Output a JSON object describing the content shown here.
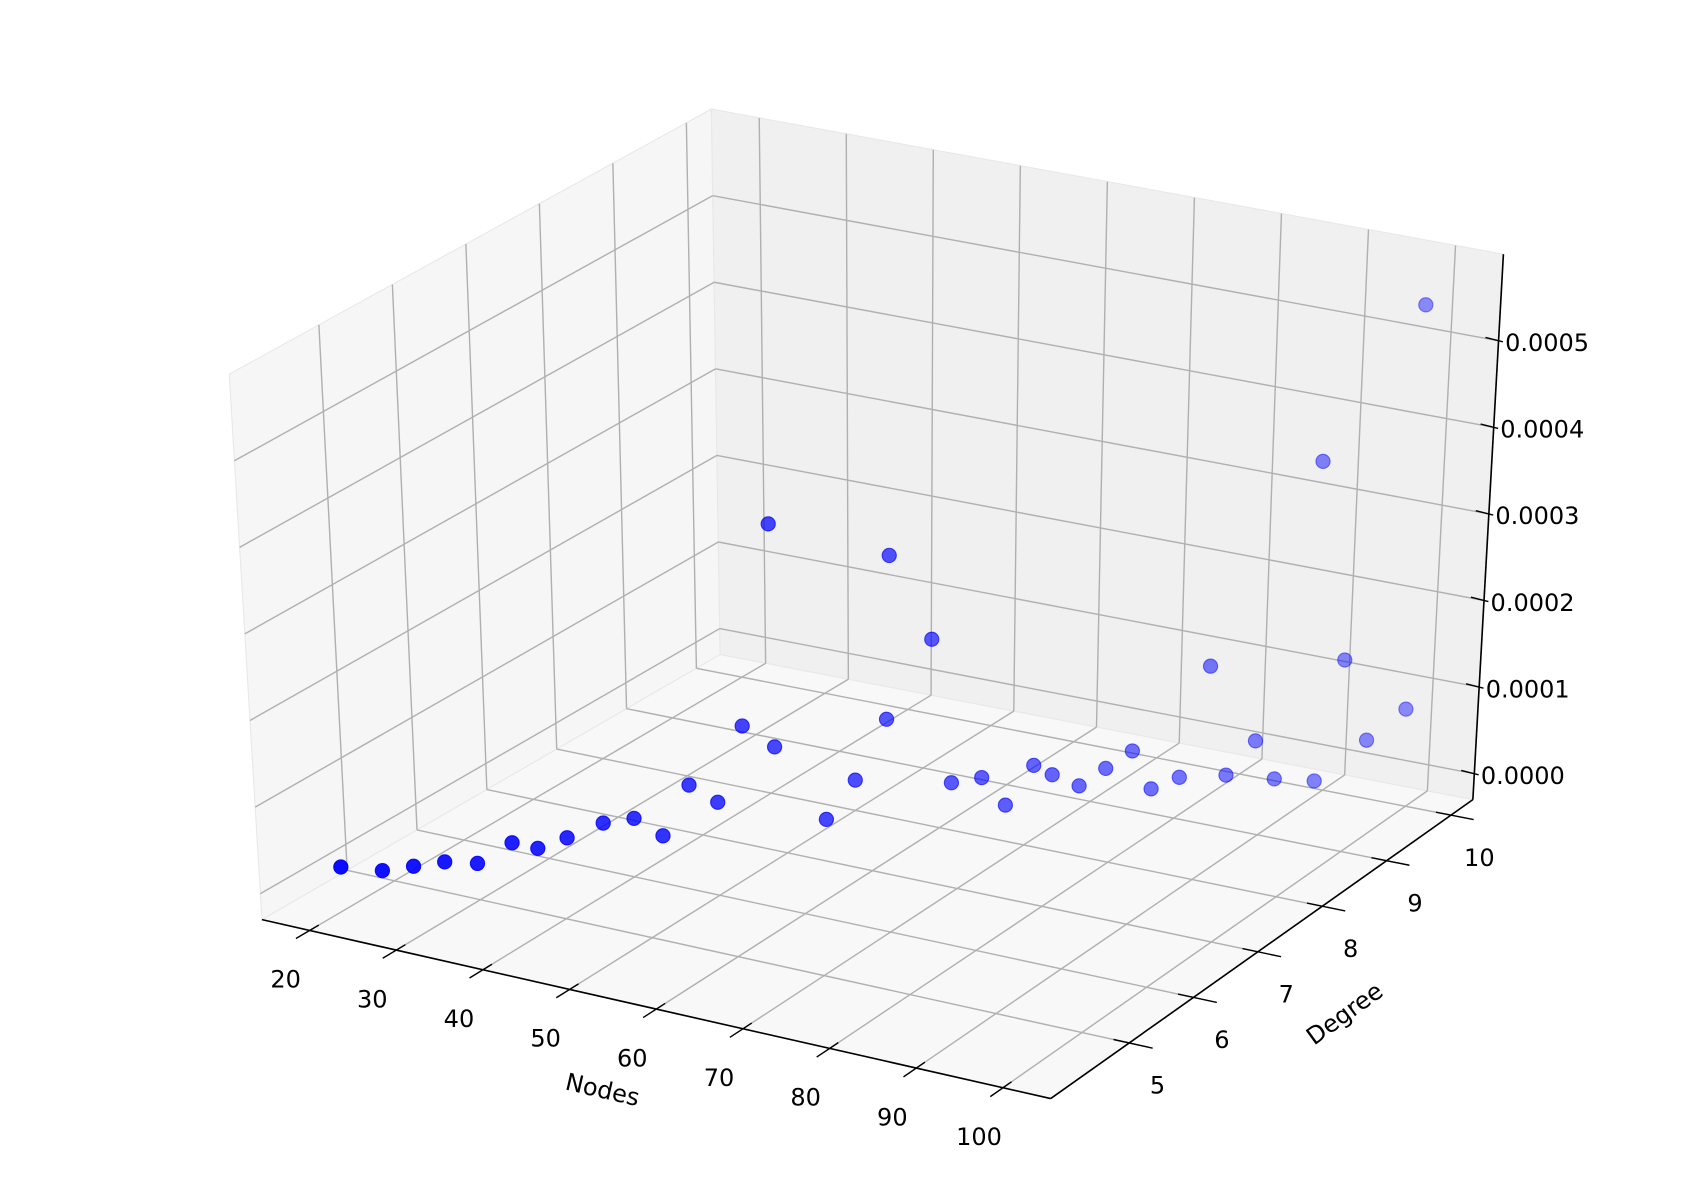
{
  "chart_data": {
    "type": "scatter3d",
    "xlabel": "Nodes",
    "ylabel": "Degree",
    "color": "#0000ff",
    "grid": true,
    "x": [
      18,
      22,
      24,
      26,
      29,
      29,
      32,
      33,
      34,
      36,
      41,
      36,
      41,
      35,
      38,
      53,
      50,
      44,
      59,
      61,
      67,
      64,
      67,
      71,
      71,
      71,
      78,
      79,
      83,
      81,
      88,
      92,
      95,
      98,
      40,
      50,
      55,
      80,
      90,
      92,
      98
    ],
    "y": [
      4.5,
      4.6,
      4.8,
      5.0,
      5.1,
      5.6,
      5.6,
      5.9,
      6.3,
      6.5,
      6.3,
      7.3,
      7.1,
      8.2,
      8.3,
      7.2,
      8.0,
      9.2,
      8.3,
      8.5,
      8.1,
      8.9,
      8.8,
      8.7,
      9.1,
      9.5,
      8.9,
      9.2,
      9.4,
      10.1,
      9.5,
      9.6,
      10,
      10.2,
      8,
      8.5,
      8.5,
      9.5,
      9.8,
      10,
      10.2
    ],
    "z": [
      5e-06,
      5e-06,
      5e-06,
      5e-06,
      5e-06,
      5e-06,
      5e-06,
      5e-06,
      5e-06,
      5e-06,
      5e-06,
      5e-06,
      5e-06,
      2.8e-05,
      5e-06,
      5e-06,
      5e-06,
      5e-06,
      5e-06,
      5e-06,
      5e-06,
      5e-06,
      5e-06,
      5e-06,
      5e-06,
      5e-06,
      5e-06,
      5e-06,
      5e-06,
      5e-06,
      5e-06,
      5e-06,
      3.7e-05,
      6.8e-05,
      0.000281,
      0.00024,
      0.000153,
      0.00012,
      0.00036,
      0.000124,
      0.000535
    ],
    "xlim": [
      14.5,
      105.5
    ],
    "ylim": [
      3.78,
      10.34
    ],
    "zlim": [
      -3e-05,
      0.0006
    ],
    "xticks": [
      20,
      30,
      40,
      50,
      60,
      70,
      80,
      90,
      100
    ],
    "yticks": [
      5,
      6,
      7,
      8,
      9,
      10
    ],
    "zticks": [
      {
        "value": 0,
        "label": "0.0000"
      },
      {
        "value": 0.0001,
        "label": "0.0001"
      },
      {
        "value": 0.0002,
        "label": "0.0002"
      },
      {
        "value": 0.0003,
        "label": "0.0003"
      },
      {
        "value": 0.0004,
        "label": "0.0004"
      },
      {
        "value": 0.0005,
        "label": "0.0005"
      }
    ]
  }
}
